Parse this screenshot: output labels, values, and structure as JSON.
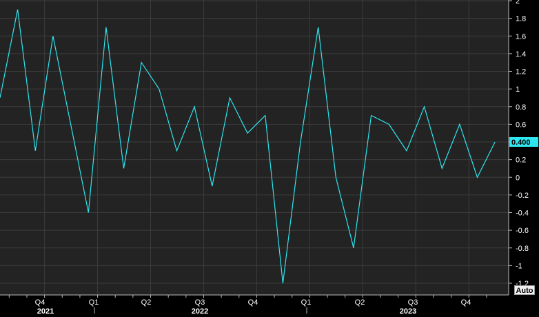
{
  "chart_data": {
    "type": "line",
    "title": "",
    "xlabel": "",
    "ylabel": "",
    "colors": {
      "line": "#2ee6f0",
      "background": "#232323",
      "grid": "#3c3c3c",
      "axis_text": "#ffffff",
      "last_value_bg": "#2ee6f0"
    },
    "ylim": [
      -1.3,
      2.0
    ],
    "y_ticks": [
      2,
      1.8,
      1.6,
      1.4,
      1.2,
      1,
      0.8,
      0.6,
      0.4,
      0.2,
      0,
      -0.2,
      -0.4,
      -0.6,
      -0.8,
      -1,
      -1.2
    ],
    "y_tick_labels": [
      "2",
      "1.8",
      "1.6",
      "1.4",
      "1.2",
      "1",
      "0.8",
      "0.6",
      "0.4",
      "0.2",
      "0",
      "-0.2",
      "-0.4",
      "-0.6",
      "-0.8",
      "-1",
      "-1.2"
    ],
    "x_period_labels": [
      "Q4",
      "Q1",
      "Q2",
      "Q3",
      "Q4",
      "Q1",
      "Q2",
      "Q3",
      "Q4"
    ],
    "x_year_labels": [
      "2021",
      "2022",
      "2023"
    ],
    "last_value_label": "0.400",
    "grid": true,
    "series": [
      {
        "x": [
          "2021-07",
          "2021-08",
          "2021-09",
          "2021-10",
          "2021-11",
          "2021-12",
          "2022-01",
          "2022-02",
          "2022-03",
          "2022-04",
          "2022-05",
          "2022-06",
          "2022-07",
          "2022-08",
          "2022-09",
          "2022-10",
          "2022-11",
          "2022-12",
          "2023-01",
          "2023-02",
          "2023-03",
          "2023-04",
          "2023-05",
          "2023-06",
          "2023-07",
          "2023-08",
          "2023-09",
          "2023-10",
          "2023-11"
        ],
        "values": [
          0.9,
          1.9,
          0.3,
          1.6,
          0.6,
          -0.4,
          1.7,
          0.1,
          1.3,
          1.0,
          0.3,
          0.8,
          -0.1,
          0.9,
          0.5,
          0.7,
          -1.2,
          0.4,
          1.7,
          0.0,
          -0.8,
          0.7,
          0.6,
          0.3,
          0.8,
          0.1,
          0.6,
          0.0,
          0.4
        ]
      }
    ]
  },
  "controls": {
    "auto_label": "Auto"
  }
}
